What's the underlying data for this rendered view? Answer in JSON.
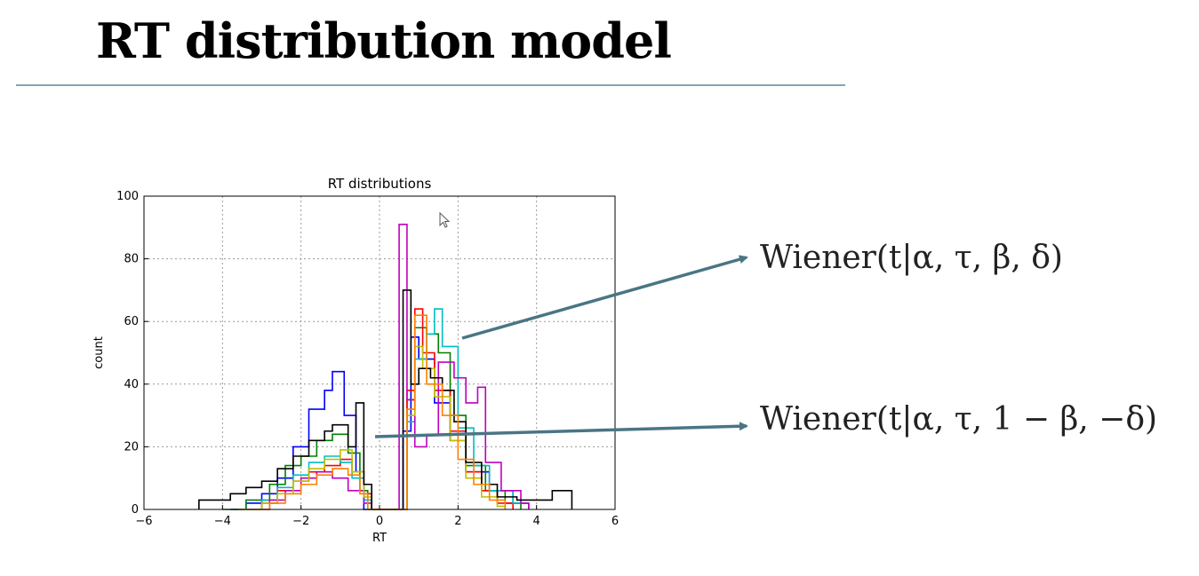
{
  "slide": {
    "title": "RT distribution model"
  },
  "equations": {
    "upper": "Wiener(t|α, τ, β, δ)",
    "lower": "Wiener(t|α, τ, 1 − β, −δ)"
  },
  "colors": {
    "title_rule": "#7fa6b4",
    "arrow": "#4a7585"
  },
  "icons": [
    "mouse-cursor-icon"
  ],
  "chart_data": {
    "type": "line",
    "title": "RT distributions",
    "xlabel": "RT",
    "ylabel": "count",
    "xlim": [
      -6,
      6
    ],
    "ylim": [
      0,
      100
    ],
    "xticks": [
      -6,
      -4,
      -2,
      0,
      2,
      4,
      6
    ],
    "yticks": [
      0,
      20,
      40,
      60,
      80,
      100
    ],
    "xtick_labels": [
      "−6",
      "−4",
      "−2",
      "0",
      "2",
      "4",
      "6"
    ],
    "ytick_labels": [
      "0",
      "20",
      "40",
      "60",
      "80",
      "100"
    ],
    "grid": true,
    "style": "step histograms",
    "series": [
      {
        "color": "#0000ff",
        "points": [
          [
            -3.8,
            0
          ],
          [
            -3.4,
            2
          ],
          [
            -3.0,
            5
          ],
          [
            -2.6,
            10
          ],
          [
            -2.2,
            20
          ],
          [
            -1.8,
            32
          ],
          [
            -1.4,
            38
          ],
          [
            -1.2,
            44
          ],
          [
            -0.9,
            30
          ],
          [
            -0.6,
            12
          ],
          [
            -0.4,
            0
          ],
          [
            0.4,
            0
          ],
          [
            0.6,
            25
          ],
          [
            0.8,
            55
          ],
          [
            1.0,
            48
          ],
          [
            1.4,
            34
          ],
          [
            1.8,
            22
          ],
          [
            2.2,
            12
          ],
          [
            2.8,
            6
          ],
          [
            3.4,
            2
          ],
          [
            3.8,
            0
          ]
        ]
      },
      {
        "color": "#008000",
        "points": [
          [
            -4.0,
            0
          ],
          [
            -3.4,
            3
          ],
          [
            -2.8,
            8
          ],
          [
            -2.4,
            14
          ],
          [
            -2.0,
            17
          ],
          [
            -1.6,
            22
          ],
          [
            -1.2,
            24
          ],
          [
            -0.8,
            18
          ],
          [
            -0.5,
            6
          ],
          [
            -0.3,
            0
          ],
          [
            0.5,
            0
          ],
          [
            0.7,
            35
          ],
          [
            0.9,
            58
          ],
          [
            1.2,
            56
          ],
          [
            1.5,
            50
          ],
          [
            1.8,
            30
          ],
          [
            2.2,
            14
          ],
          [
            2.7,
            6
          ],
          [
            3.2,
            2
          ],
          [
            3.6,
            0
          ]
        ]
      },
      {
        "color": "#ff0000",
        "points": [
          [
            -3.6,
            0
          ],
          [
            -3.0,
            2
          ],
          [
            -2.6,
            6
          ],
          [
            -2.2,
            9
          ],
          [
            -1.8,
            12
          ],
          [
            -1.4,
            14
          ],
          [
            -1.0,
            16
          ],
          [
            -0.7,
            12
          ],
          [
            -0.4,
            5
          ],
          [
            -0.2,
            0
          ],
          [
            0.5,
            0
          ],
          [
            0.7,
            38
          ],
          [
            0.9,
            64
          ],
          [
            1.1,
            50
          ],
          [
            1.4,
            38
          ],
          [
            1.8,
            25
          ],
          [
            2.2,
            12
          ],
          [
            2.6,
            6
          ],
          [
            3.0,
            2
          ],
          [
            3.4,
            0
          ]
        ]
      },
      {
        "color": "#00bfbf",
        "points": [
          [
            -3.5,
            0
          ],
          [
            -3.0,
            3
          ],
          [
            -2.6,
            7
          ],
          [
            -2.2,
            11
          ],
          [
            -1.8,
            15
          ],
          [
            -1.4,
            17
          ],
          [
            -1.0,
            15
          ],
          [
            -0.7,
            10
          ],
          [
            -0.4,
            3
          ],
          [
            -0.2,
            0
          ],
          [
            0.5,
            0
          ],
          [
            0.7,
            28
          ],
          [
            0.9,
            48
          ],
          [
            1.2,
            56
          ],
          [
            1.4,
            64
          ],
          [
            1.6,
            52
          ],
          [
            2.0,
            26
          ],
          [
            2.4,
            14
          ],
          [
            2.8,
            6
          ],
          [
            3.4,
            2
          ],
          [
            3.8,
            0
          ]
        ]
      },
      {
        "color": "#bf00bf",
        "points": [
          [
            -3.4,
            0
          ],
          [
            -2.8,
            3
          ],
          [
            -2.4,
            6
          ],
          [
            -2.0,
            10
          ],
          [
            -1.6,
            12
          ],
          [
            -1.2,
            10
          ],
          [
            -0.8,
            6
          ],
          [
            -0.4,
            2
          ],
          [
            -0.2,
            0
          ],
          [
            0.4,
            0
          ],
          [
            0.5,
            91
          ],
          [
            0.7,
            35
          ],
          [
            0.9,
            20
          ],
          [
            1.2,
            24
          ],
          [
            1.5,
            47
          ],
          [
            1.9,
            42
          ],
          [
            2.2,
            34
          ],
          [
            2.5,
            39
          ],
          [
            2.7,
            15
          ],
          [
            3.1,
            6
          ],
          [
            3.6,
            2
          ],
          [
            3.8,
            0
          ]
        ]
      },
      {
        "color": "#bfbf00",
        "points": [
          [
            -3.6,
            0
          ],
          [
            -3.0,
            2
          ],
          [
            -2.6,
            5
          ],
          [
            -2.2,
            9
          ],
          [
            -1.8,
            13
          ],
          [
            -1.4,
            16
          ],
          [
            -1.0,
            19
          ],
          [
            -0.7,
            12
          ],
          [
            -0.4,
            4
          ],
          [
            -0.2,
            0
          ],
          [
            0.5,
            0
          ],
          [
            0.7,
            30
          ],
          [
            0.9,
            52
          ],
          [
            1.1,
            45
          ],
          [
            1.4,
            36
          ],
          [
            1.8,
            22
          ],
          [
            2.2,
            10
          ],
          [
            2.6,
            4
          ],
          [
            3.0,
            1
          ],
          [
            3.2,
            0
          ]
        ]
      },
      {
        "color": "#000000",
        "points": [
          [
            -4.6,
            0
          ],
          [
            -4.6,
            3
          ],
          [
            -4.2,
            3
          ],
          [
            -3.8,
            5
          ],
          [
            -3.4,
            7
          ],
          [
            -3.0,
            9
          ],
          [
            -2.6,
            13
          ],
          [
            -2.2,
            17
          ],
          [
            -1.8,
            22
          ],
          [
            -1.4,
            25
          ],
          [
            -1.2,
            27
          ],
          [
            -0.8,
            20
          ],
          [
            -0.6,
            34
          ],
          [
            -0.4,
            8
          ],
          [
            -0.2,
            0
          ],
          [
            0.5,
            0
          ],
          [
            0.6,
            70
          ],
          [
            0.8,
            40
          ],
          [
            1.0,
            45
          ],
          [
            1.3,
            42
          ],
          [
            1.6,
            38
          ],
          [
            1.9,
            28
          ],
          [
            2.2,
            15
          ],
          [
            2.6,
            8
          ],
          [
            3.0,
            4
          ],
          [
            3.5,
            3
          ],
          [
            4.1,
            3
          ],
          [
            4.4,
            6
          ],
          [
            4.9,
            0
          ]
        ]
      },
      {
        "color": "#ff7f00",
        "points": [
          [
            -3.2,
            0
          ],
          [
            -2.8,
            2
          ],
          [
            -2.4,
            5
          ],
          [
            -2.0,
            8
          ],
          [
            -1.6,
            11
          ],
          [
            -1.2,
            13
          ],
          [
            -0.8,
            11
          ],
          [
            -0.5,
            5
          ],
          [
            -0.3,
            0
          ],
          [
            0.5,
            0
          ],
          [
            0.7,
            32
          ],
          [
            0.9,
            62
          ],
          [
            1.2,
            40
          ],
          [
            1.6,
            30
          ],
          [
            2.0,
            16
          ],
          [
            2.4,
            8
          ],
          [
            2.8,
            3
          ],
          [
            3.2,
            0
          ]
        ]
      }
    ]
  }
}
